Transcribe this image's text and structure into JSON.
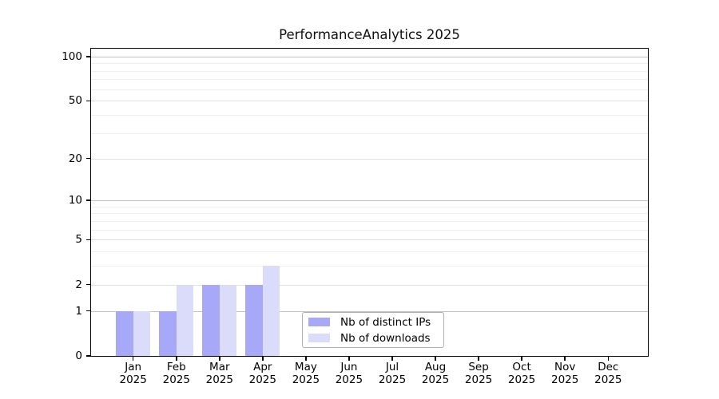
{
  "title": "PerformanceAnalytics 2025",
  "chart_data": {
    "type": "bar",
    "title": "PerformanceAnalytics 2025",
    "x_months": [
      "Jan",
      "Feb",
      "Mar",
      "Apr",
      "May",
      "Jun",
      "Jul",
      "Aug",
      "Sep",
      "Oct",
      "Nov",
      "Dec"
    ],
    "x_year": "2025",
    "categories": [
      "Jan 2025",
      "Feb 2025",
      "Mar 2025",
      "Apr 2025",
      "May 2025",
      "Jun 2025",
      "Jul 2025",
      "Aug 2025",
      "Sep 2025",
      "Oct 2025",
      "Nov 2025",
      "Dec 2025"
    ],
    "series": [
      {
        "name": "Nb of distinct IPs",
        "color": "#a8a8f8",
        "values": [
          1,
          1,
          2,
          2,
          0,
          0,
          0,
          0,
          0,
          0,
          0,
          0
        ]
      },
      {
        "name": "Nb of downloads",
        "color": "#dbdbfa",
        "values": [
          1,
          2,
          2,
          3,
          0,
          0,
          0,
          0,
          0,
          0,
          0,
          0
        ]
      }
    ],
    "yscale": "log1p",
    "ylim": [
      0,
      100
    ],
    "y_ticks": [
      0,
      1,
      2,
      5,
      10,
      20,
      50,
      100
    ],
    "y_minor_ticks": [
      3,
      4,
      6,
      7,
      8,
      9,
      30,
      40,
      60,
      70,
      80,
      90
    ],
    "grid": true,
    "legend_position": "inside-bottom-center"
  },
  "colors": {
    "ips_bar": "#a8a8f8",
    "downloads_bar": "#dbdbfa",
    "grid_power10": "#c3c3c3",
    "grid_labeled": "#e1e1e1",
    "grid_minor": "#efefef",
    "axis_frame": "#000000",
    "legend_border": "#b0b0b0",
    "background": "#ffffff"
  }
}
